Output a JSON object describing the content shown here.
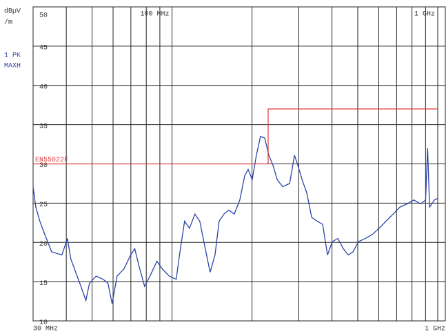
{
  "chart_data": {
    "type": "line",
    "y_label_lines": [
      "dBµV",
      "/m"
    ],
    "trace_label_lines": [
      "1 PK",
      "MAXH"
    ],
    "limit_label": "EN55022F",
    "xscale": "log",
    "xlim": [
      30,
      1000
    ],
    "xgrid": [
      30,
      40,
      50,
      60,
      70,
      80,
      90,
      100,
      200,
      300,
      400,
      500,
      600,
      700,
      800,
      900,
      1000
    ],
    "xticks_top": [
      {
        "value": 100,
        "label": "100 MHz"
      },
      {
        "value": 1000,
        "label": "1 GHz"
      }
    ],
    "xticks_bottom": [
      {
        "value": 30,
        "label": "30 MHz"
      },
      {
        "value": 1000,
        "label": "1 GHz"
      }
    ],
    "ylim": [
      10,
      50
    ],
    "yticks": [
      10,
      15,
      20,
      25,
      30,
      35,
      40,
      45,
      50
    ],
    "grid": true,
    "series": [
      {
        "name": "1 PK MAXH",
        "color": "#2b43a8",
        "x": [
          30,
          30.7,
          31.8,
          33.2,
          35.2,
          38.5,
          40.4,
          41.6,
          43.4,
          45.4,
          47.4,
          48.9,
          51.8,
          55.0,
          57.4,
          59.5,
          62.1,
          65.9,
          69.9,
          72.4,
          75.1,
          78.8,
          82.6,
          87.7,
          92.0,
          97.7,
          103.7,
          107.5,
          111.5,
          116.3,
          122.0,
          127.2,
          133.4,
          139.1,
          145.1,
          150.4,
          156.8,
          163.5,
          171.5,
          180.0,
          187.7,
          193.4,
          200.4,
          207.7,
          215.3,
          223.2,
          231.4,
          240,
          248.8,
          261.0,
          277.2,
          289.0,
          297.8,
          308.6,
          321.7,
          335.4,
          351.8,
          369.0,
          384.8,
          401.1,
          420.8,
          441.4,
          460.2,
          480,
          503,
          534,
          567,
          602,
          639,
          679,
          721,
          766,
          813,
          863,
          900,
          916,
          932,
          972,
          1000
        ],
        "values": [
          27.1,
          24.5,
          22.7,
          21,
          18.8,
          18.4,
          20.5,
          17.9,
          16.2,
          14.4,
          12.6,
          14.8,
          15.7,
          15.3,
          14.8,
          12.2,
          15.7,
          16.6,
          18.4,
          19.2,
          17,
          14.4,
          15.7,
          17.6,
          16.6,
          15.7,
          15.3,
          19.2,
          22.7,
          21.8,
          23.6,
          22.7,
          19.2,
          16.2,
          18.4,
          22.7,
          23.6,
          24.1,
          23.6,
          25.4,
          28.5,
          29.3,
          28,
          31.1,
          33.5,
          33.3,
          31.1,
          29.8,
          28,
          27.1,
          27.5,
          31.1,
          29.8,
          28,
          26.3,
          23.2,
          22.7,
          22.3,
          18.4,
          20.1,
          20.5,
          19.2,
          18.4,
          18.8,
          20.1,
          20.5,
          21,
          21.8,
          22.7,
          23.6,
          24.5,
          24.9,
          25.4,
          24.9,
          25.4,
          32,
          24.5,
          25.4,
          25.6
        ]
      },
      {
        "name": "EN55022F",
        "color": "#e03a3a",
        "x": [
          30,
          230,
          230,
          1000
        ],
        "values": [
          30,
          30,
          37,
          37
        ]
      }
    ]
  }
}
